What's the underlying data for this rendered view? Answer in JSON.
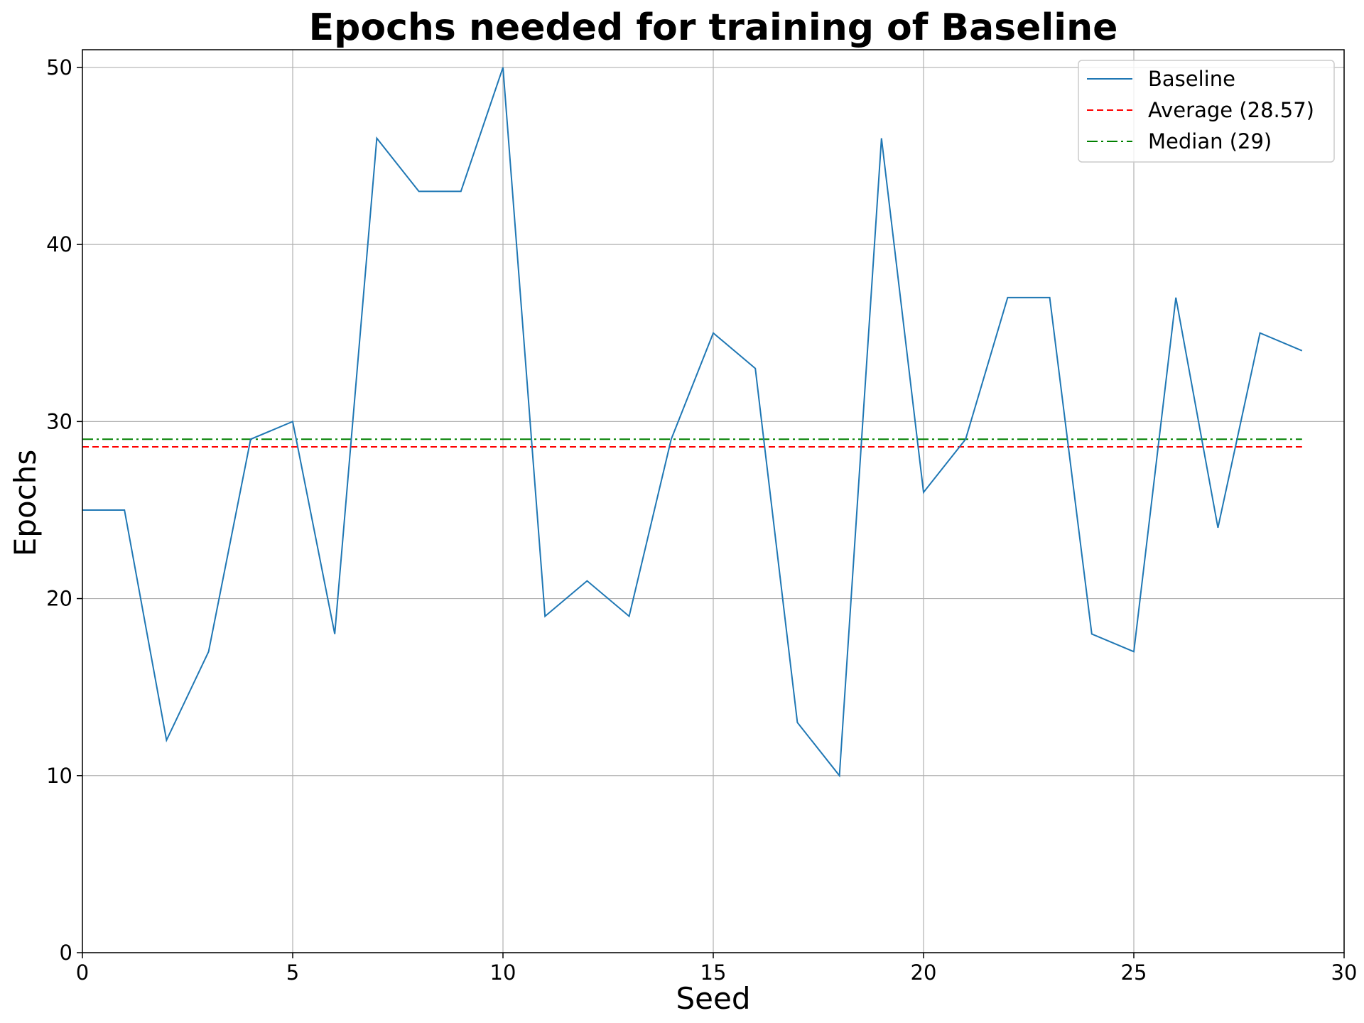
{
  "chart_data": {
    "type": "line",
    "title": "Epochs needed for training of Baseline",
    "xlabel": "Seed",
    "ylabel": "Epochs",
    "xlim": [
      0,
      30
    ],
    "ylim": [
      0,
      51
    ],
    "xticks": [
      0,
      5,
      10,
      15,
      20,
      25,
      30
    ],
    "yticks": [
      0,
      10,
      20,
      30,
      40,
      50
    ],
    "grid": true,
    "legend_position": "top-right",
    "x": [
      0,
      1,
      2,
      3,
      4,
      5,
      6,
      7,
      8,
      9,
      10,
      11,
      12,
      13,
      14,
      15,
      16,
      17,
      18,
      19,
      20,
      21,
      22,
      23,
      24,
      25,
      26,
      27,
      28,
      29
    ],
    "series": [
      {
        "name": "Baseline",
        "color": "#1f77b4",
        "style": "solid",
        "values": [
          25,
          25,
          12,
          17,
          29,
          30,
          18,
          46,
          43,
          43,
          50,
          19,
          21,
          19,
          29,
          35,
          33,
          13,
          10,
          46,
          26,
          29,
          37,
          37,
          18,
          17,
          37,
          24,
          35,
          34
        ]
      }
    ],
    "reference_lines": [
      {
        "name": "Average (28.57)",
        "value": 28.57,
        "color": "#ff0000",
        "style": "dashed"
      },
      {
        "name": "Median (29)",
        "value": 29,
        "color": "#008000",
        "style": "dashdot"
      }
    ]
  }
}
